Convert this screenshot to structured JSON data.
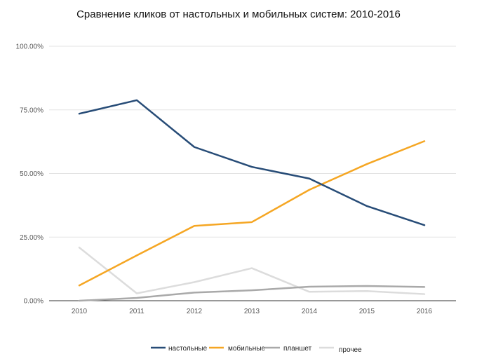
{
  "chart_data": {
    "type": "line",
    "title": "Сравнение кликов от настольных и мобильных систем: 2010-2016",
    "xlabel": "",
    "ylabel": "",
    "x": [
      "2010",
      "2011",
      "2012",
      "2013",
      "2014",
      "2015",
      "2016"
    ],
    "y_ticks": [
      "0.00%",
      "25.00%",
      "50.00%",
      "75.00%",
      "100.00%"
    ],
    "ylim": [
      0,
      100
    ],
    "grid": true,
    "legend_position": "bottom",
    "series": [
      {
        "name": "настольные",
        "color": "#274c77",
        "values": [
          73.5,
          78.8,
          60.4,
          52.6,
          48.0,
          37.2,
          29.7
        ]
      },
      {
        "name": "мобильные",
        "color": "#f5a623",
        "values": [
          6.0,
          17.8,
          29.4,
          30.9,
          43.6,
          53.7,
          62.7
        ]
      },
      {
        "name": "планшет",
        "color": "#a9a9a9",
        "values": [
          0.0,
          1.1,
          3.2,
          4.1,
          5.5,
          5.8,
          5.4
        ]
      },
      {
        "name": "прочее",
        "color": "#dcdcdc",
        "values": [
          20.9,
          2.9,
          7.3,
          12.8,
          3.5,
          3.8,
          2.6
        ]
      }
    ]
  }
}
